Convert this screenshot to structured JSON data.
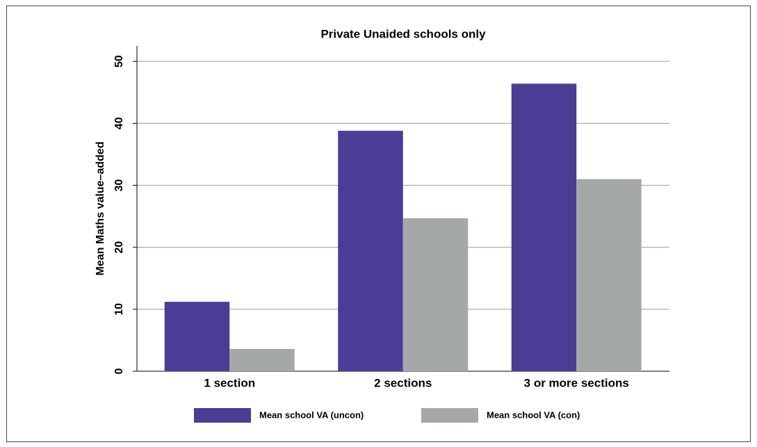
{
  "chart_data": {
    "type": "bar",
    "title": "Private Unaided schools only",
    "y_label": "Mean Maths value–added",
    "categories": [
      "1 section",
      "2 sections",
      "3 or more sections"
    ],
    "series": [
      {
        "name": "Mean school VA (uncon)",
        "color": "#4b3c96",
        "values": [
          11.2,
          38.8,
          46.4
        ]
      },
      {
        "name": "Mean school VA (con)",
        "color": "#a5a8a9",
        "values": [
          3.6,
          24.7,
          31.0
        ]
      }
    ],
    "ylim": [
      0,
      52.5
    ],
    "yticks": [
      0,
      10,
      20,
      30,
      40,
      50
    ],
    "grid": true,
    "legend": "bottom"
  }
}
